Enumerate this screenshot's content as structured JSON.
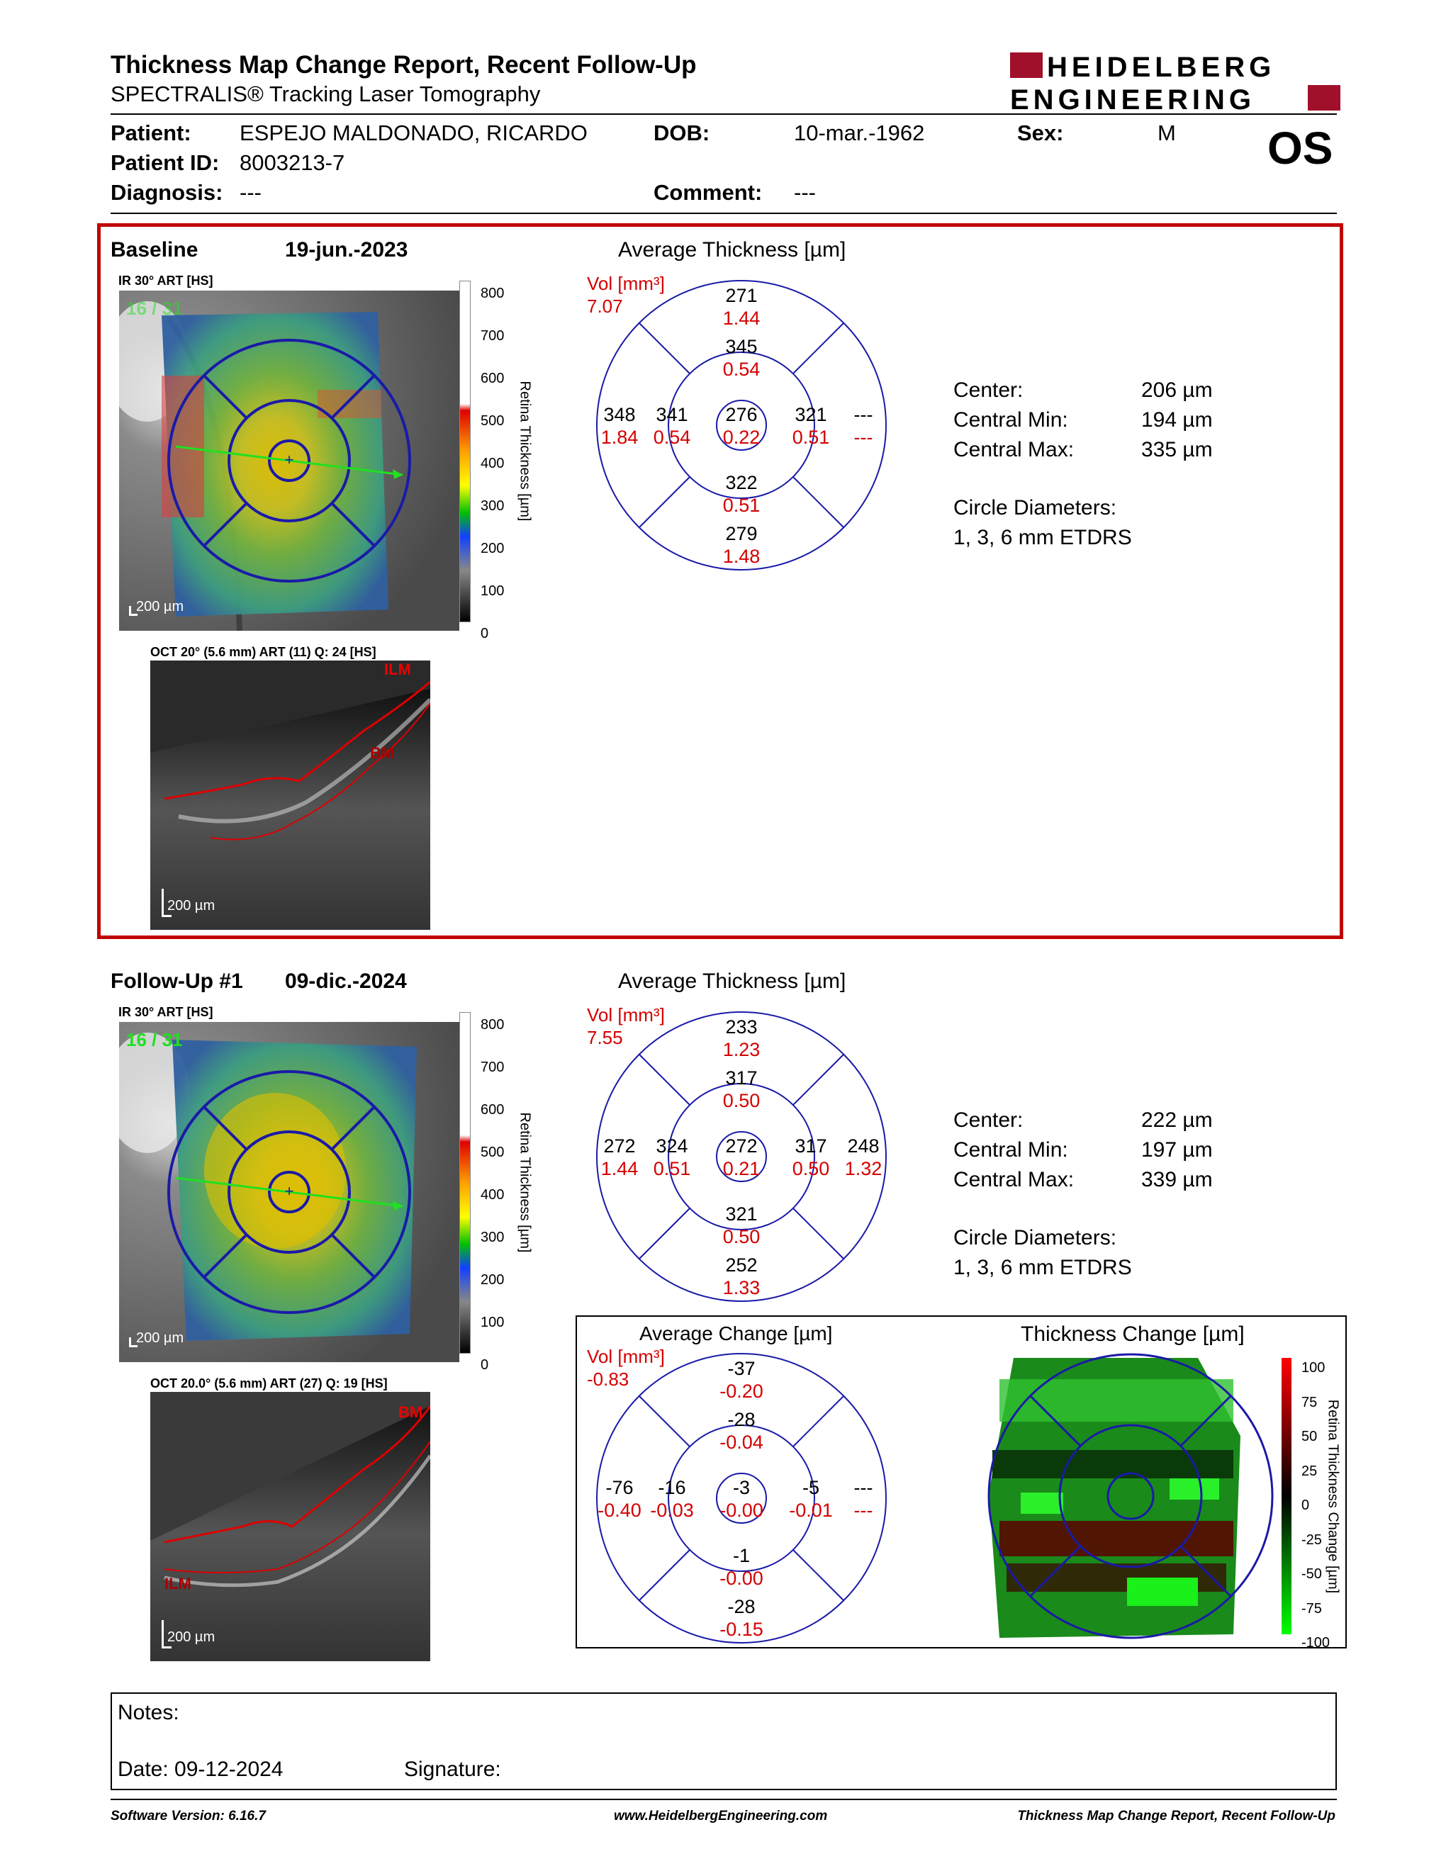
{
  "header": {
    "title": "Thickness Map Change Report, Recent Follow-Up",
    "subtitle": "SPECTRALIS® Tracking Laser Tomography",
    "logo_line1": "HEIDELBERG",
    "logo_line2": "ENGINEERING"
  },
  "patient": {
    "patient_label": "Patient:",
    "patient_value": "ESPEJO MALDONADO, RICARDO",
    "dob_label": "DOB:",
    "dob_value": "10-mar.-1962",
    "sex_label": "Sex:",
    "sex_value": "M",
    "id_label": "Patient ID:",
    "id_value": "8003213-7",
    "diagnosis_label": "Diagnosis:",
    "diagnosis_value": "---",
    "comment_label": "Comment:",
    "comment_value": "---",
    "eye": "OS"
  },
  "baseline": {
    "label": "Baseline",
    "date": "19-jun.-2023",
    "ir_label": "IR 30° ART [HS]",
    "frame_counter": "16 / 31",
    "scale_label": "200 µm",
    "oct_label": "OCT 20° (5.6 mm) ART (11) Q: 24 [HS]",
    "oct_scale": "200 µm",
    "ilm_label": "ILM",
    "bm_label": "BM",
    "avg_title": "Average Thickness [µm]",
    "vol_label": "Vol [mm³]",
    "vol_value": "7.07",
    "grid": {
      "outer_top": {
        "t": "271",
        "v": "1.44"
      },
      "inner_top": {
        "t": "345",
        "v": "0.54"
      },
      "outer_left": {
        "t": "348",
        "v": "1.84"
      },
      "inner_left": {
        "t": "341",
        "v": "0.54"
      },
      "center": {
        "t": "276",
        "v": "0.22"
      },
      "inner_right": {
        "t": "321",
        "v": "0.51"
      },
      "outer_right": {
        "t": "---",
        "v": "---"
      },
      "inner_bottom": {
        "t": "322",
        "v": "0.51"
      },
      "outer_bottom": {
        "t": "279",
        "v": "1.48"
      }
    },
    "stats": {
      "center_label": "Center:",
      "center_value": "206 µm",
      "min_label": "Central Min:",
      "min_value": "194 µm",
      "max_label": "Central Max:",
      "max_value": "335 µm",
      "circle_label": "Circle Diameters:",
      "circle_value": "1, 3, 6 mm ETDRS"
    }
  },
  "followup": {
    "label": "Follow-Up #1",
    "date": "09-dic.-2024",
    "ir_label": "IR 30° ART [HS]",
    "frame_counter": "16 / 31",
    "scale_label": "200 µm",
    "oct_label": "OCT 20.0° (5.6 mm) ART (27) Q: 19 [HS]",
    "oct_scale": "200 µm",
    "bm_label": "BM",
    "ilm_label": "ILM",
    "avg_title": "Average Thickness [µm]",
    "vol_label": "Vol [mm³]",
    "vol_value": "7.55",
    "grid": {
      "outer_top": {
        "t": "233",
        "v": "1.23"
      },
      "inner_top": {
        "t": "317",
        "v": "0.50"
      },
      "outer_left": {
        "t": "272",
        "v": "1.44"
      },
      "inner_left": {
        "t": "324",
        "v": "0.51"
      },
      "center": {
        "t": "272",
        "v": "0.21"
      },
      "inner_right": {
        "t": "317",
        "v": "0.50"
      },
      "outer_right": {
        "t": "248",
        "v": "1.32"
      },
      "inner_bottom": {
        "t": "321",
        "v": "0.50"
      },
      "outer_bottom": {
        "t": "252",
        "v": "1.33"
      }
    },
    "stats": {
      "center_label": "Center:",
      "center_value": "222 µm",
      "min_label": "Central Min:",
      "min_value": "197 µm",
      "max_label": "Central Max:",
      "max_value": "339 µm",
      "circle_label": "Circle Diameters:",
      "circle_value": "1, 3, 6 mm ETDRS"
    }
  },
  "change": {
    "avg_title": "Average Change [µm]",
    "vol_label": "Vol [mm³]",
    "vol_value": "-0.83",
    "grid": {
      "outer_top": {
        "t": "-37",
        "v": "-0.20"
      },
      "inner_top": {
        "t": "-28",
        "v": "-0.04"
      },
      "outer_left": {
        "t": "-76",
        "v": "-0.40"
      },
      "inner_left": {
        "t": "-16",
        "v": "-0.03"
      },
      "center": {
        "t": "-3",
        "v": "-0.00"
      },
      "inner_right": {
        "t": "-5",
        "v": "-0.01"
      },
      "outer_right": {
        "t": "---",
        "v": "---"
      },
      "inner_bottom": {
        "t": "-1",
        "v": "-0.00"
      },
      "outer_bottom": {
        "t": "-28",
        "v": "-0.15"
      }
    },
    "map_title": "Thickness Change [µm]",
    "map_scale_title": "Retina Thickness Change [µm]",
    "map_scale_ticks": [
      "100",
      "75",
      "50",
      "25",
      "0",
      "-25",
      "-50",
      "-75",
      "-100"
    ]
  },
  "thickness_scale": {
    "title": "Retina Thickness [µm]",
    "ticks": [
      "800",
      "700",
      "600",
      "500",
      "400",
      "300",
      "200",
      "100",
      "0"
    ]
  },
  "notes": {
    "notes_label": "Notes:",
    "date_label": "Date: 09-12-2024",
    "signature_label": "Signature:"
  },
  "footer": {
    "software": "Software Version: 6.16.7",
    "website": "www.HeidelbergEngineering.com",
    "report": "Thickness Map Change Report, Recent Follow-Up"
  },
  "colors": {
    "red_frame": "#c00000",
    "etdrs_blue": "#1a1aa8",
    "volume_red": "#d40000",
    "logo_red": "#a0102a"
  }
}
